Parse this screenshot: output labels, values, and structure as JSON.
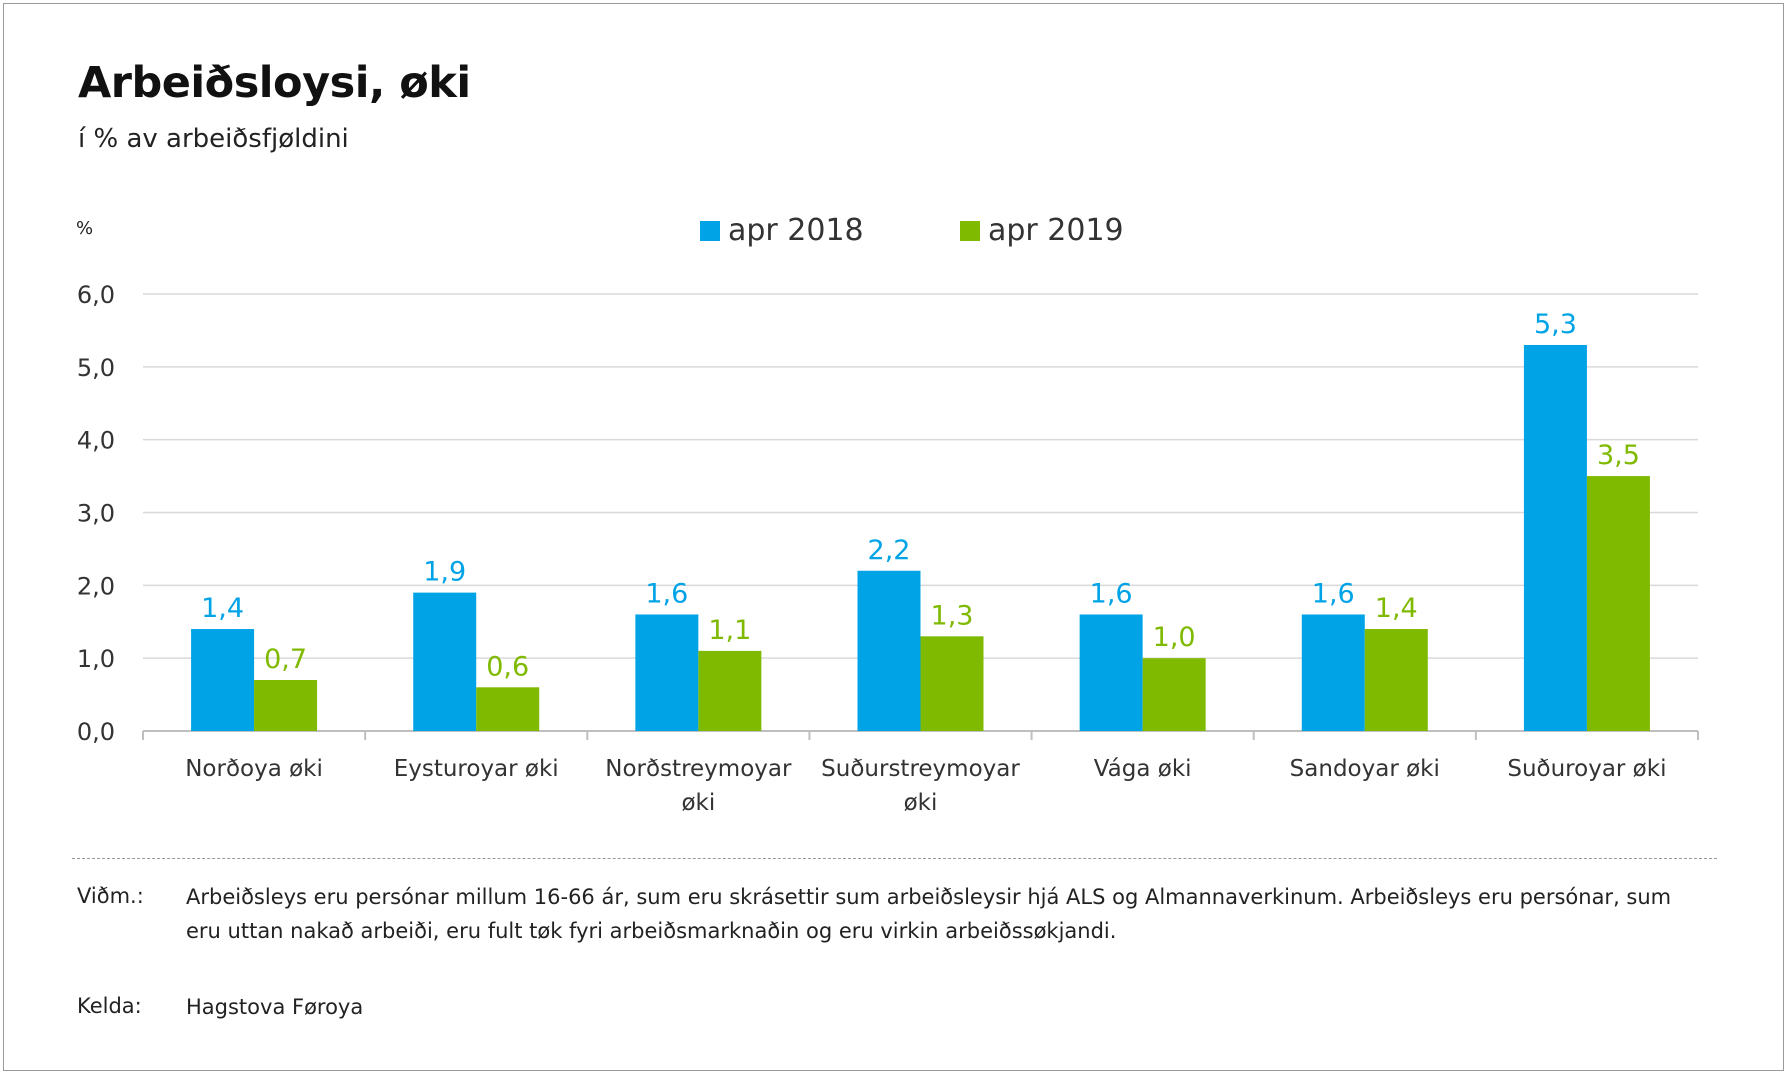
{
  "title": "Arbeiðsloysi, øki",
  "subtitle": "í % av arbeiðsfjøldini",
  "unit_label": "%",
  "legend": [
    {
      "label": "apr 2018",
      "color": "#00a4e6"
    },
    {
      "label": "apr 2019",
      "color": "#7fba00"
    }
  ],
  "chart_data": {
    "type": "bar",
    "categories": [
      [
        "Norðoya øki"
      ],
      [
        "Eysturoyar øki"
      ],
      [
        "Norðstreymoyar",
        "øki"
      ],
      [
        "Suðurstreymoyar",
        "øki"
      ],
      [
        "Vága øki"
      ],
      [
        "Sandoyar øki"
      ],
      [
        "Suðuroyar øki"
      ]
    ],
    "series": [
      {
        "name": "apr 2018",
        "color": "#00a4e6",
        "values": [
          1.4,
          1.9,
          1.6,
          2.2,
          1.6,
          1.6,
          5.3
        ]
      },
      {
        "name": "apr 2019",
        "color": "#7fba00",
        "values": [
          0.7,
          0.6,
          1.1,
          1.3,
          1.0,
          1.4,
          3.5
        ]
      }
    ],
    "ylim": [
      0,
      6
    ],
    "yticks": [
      "0,0",
      "1,0",
      "2,0",
      "3,0",
      "4,0",
      "5,0",
      "6,0"
    ],
    "ylabel": "%",
    "grid": true,
    "legend_position": "top-center",
    "decimal_separator": ","
  },
  "notes": {
    "remark_label": "Viðm.:",
    "remark_text": "Arbeiðsleys eru persónar millum 16-66 ár, sum eru skrásettir sum arbeiðsleysir hjá ALS og Almannaverkinum. Arbeiðsleys eru persónar, sum eru uttan nakað arbeiði, eru fult tøk fyri arbeiðsmarknaðin og eru virkin arbeiðssøkjandi.",
    "source_label": "Kelda:",
    "source_text": "Hagstova Føroya"
  }
}
